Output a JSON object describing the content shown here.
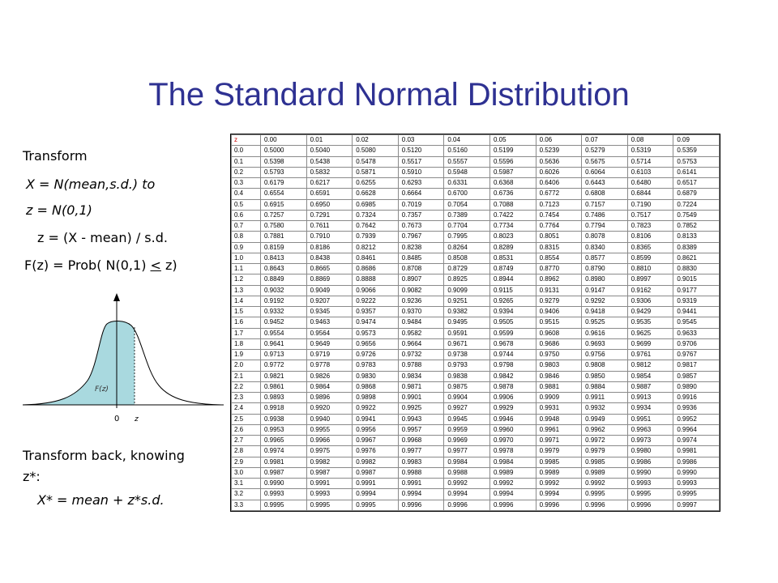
{
  "title": "The Standard Normal Distribution",
  "left": {
    "line1": "Transform",
    "line2": "X = N(mean,s.d.) to",
    "line3": "z = N(0,1)",
    "line4": "z = (X - mean) / s.d.",
    "line5_prefix": "F(z) = Prob( N(0,1) ",
    "line5_le": "<",
    "line5_suffix": " z)",
    "back1": "Transform back, knowing",
    "back2": "z*:",
    "back3": "X* = mean + z*s.d."
  },
  "curve": {
    "area_label": "F(z)",
    "origin_label": "0",
    "z_label": "z",
    "fill_color": "#a9d9df"
  },
  "table": {
    "corner": "z",
    "header": [
      "0.00",
      "0.01",
      "0.02",
      "0.03",
      "0.04",
      "0.05",
      "0.06",
      "0.07",
      "0.08",
      "0.09"
    ],
    "rows": [
      [
        "0.0",
        "0.5000",
        "0.5040",
        "0.5080",
        "0.5120",
        "0.5160",
        "0.5199",
        "0.5239",
        "0.5279",
        "0.5319",
        "0.5359"
      ],
      [
        "0.1",
        "0.5398",
        "0.5438",
        "0.5478",
        "0.5517",
        "0.5557",
        "0.5596",
        "0.5636",
        "0.5675",
        "0.5714",
        "0.5753"
      ],
      [
        "0.2",
        "0.5793",
        "0.5832",
        "0.5871",
        "0.5910",
        "0.5948",
        "0.5987",
        "0.6026",
        "0.6064",
        "0.6103",
        "0.6141"
      ],
      [
        "0.3",
        "0.6179",
        "0.6217",
        "0.6255",
        "0.6293",
        "0.6331",
        "0.6368",
        "0.6406",
        "0.6443",
        "0.6480",
        "0.6517"
      ],
      [
        "0.4",
        "0.6554",
        "0.6591",
        "0.6628",
        "0.6664",
        "0.6700",
        "0.6736",
        "0.6772",
        "0.6808",
        "0.6844",
        "0.6879"
      ],
      [
        "0.5",
        "0.6915",
        "0.6950",
        "0.6985",
        "0.7019",
        "0.7054",
        "0.7088",
        "0.7123",
        "0.7157",
        "0.7190",
        "0.7224"
      ],
      [
        "0.6",
        "0.7257",
        "0.7291",
        "0.7324",
        "0.7357",
        "0.7389",
        "0.7422",
        "0.7454",
        "0.7486",
        "0.7517",
        "0.7549"
      ],
      [
        "0.7",
        "0.7580",
        "0.7611",
        "0.7642",
        "0.7673",
        "0.7704",
        "0.7734",
        "0.7764",
        "0.7794",
        "0.7823",
        "0.7852"
      ],
      [
        "0.8",
        "0.7881",
        "0.7910",
        "0.7939",
        "0.7967",
        "0.7995",
        "0.8023",
        "0.8051",
        "0.8078",
        "0.8106",
        "0.8133"
      ],
      [
        "0.9",
        "0.8159",
        "0.8186",
        "0.8212",
        "0.8238",
        "0.8264",
        "0.8289",
        "0.8315",
        "0.8340",
        "0.8365",
        "0.8389"
      ],
      [
        "1.0",
        "0.8413",
        "0.8438",
        "0.8461",
        "0.8485",
        "0.8508",
        "0.8531",
        "0.8554",
        "0.8577",
        "0.8599",
        "0.8621"
      ],
      [
        "1.1",
        "0.8643",
        "0.8665",
        "0.8686",
        "0.8708",
        "0.8729",
        "0.8749",
        "0.8770",
        "0.8790",
        "0.8810",
        "0.8830"
      ],
      [
        "1.2",
        "0.8849",
        "0.8869",
        "0.8888",
        "0.8907",
        "0.8925",
        "0.8944",
        "0.8962",
        "0.8980",
        "0.8997",
        "0.9015"
      ],
      [
        "1.3",
        "0.9032",
        "0.9049",
        "0.9066",
        "0.9082",
        "0.9099",
        "0.9115",
        "0.9131",
        "0.9147",
        "0.9162",
        "0.9177"
      ],
      [
        "1.4",
        "0.9192",
        "0.9207",
        "0.9222",
        "0.9236",
        "0.9251",
        "0.9265",
        "0.9279",
        "0.9292",
        "0.9306",
        "0.9319"
      ],
      [
        "1.5",
        "0.9332",
        "0.9345",
        "0.9357",
        "0.9370",
        "0.9382",
        "0.9394",
        "0.9406",
        "0.9418",
        "0.9429",
        "0.9441"
      ],
      [
        "1.6",
        "0.9452",
        "0.9463",
        "0.9474",
        "0.9484",
        "0.9495",
        "0.9505",
        "0.9515",
        "0.9525",
        "0.9535",
        "0.9545"
      ],
      [
        "1.7",
        "0.9554",
        "0.9564",
        "0.9573",
        "0.9582",
        "0.9591",
        "0.9599",
        "0.9608",
        "0.9616",
        "0.9625",
        "0.9633"
      ],
      [
        "1.8",
        "0.9641",
        "0.9649",
        "0.9656",
        "0.9664",
        "0.9671",
        "0.9678",
        "0.9686",
        "0.9693",
        "0.9699",
        "0.9706"
      ],
      [
        "1.9",
        "0.9713",
        "0.9719",
        "0.9726",
        "0.9732",
        "0.9738",
        "0.9744",
        "0.9750",
        "0.9756",
        "0.9761",
        "0.9767"
      ],
      [
        "2.0",
        "0.9772",
        "0.9778",
        "0.9783",
        "0.9788",
        "0.9793",
        "0.9798",
        "0.9803",
        "0.9808",
        "0.9812",
        "0.9817"
      ],
      [
        "2.1",
        "0.9821",
        "0.9826",
        "0.9830",
        "0.9834",
        "0.9838",
        "0.9842",
        "0.9846",
        "0.9850",
        "0.9854",
        "0.9857"
      ],
      [
        "2.2",
        "0.9861",
        "0.9864",
        "0.9868",
        "0.9871",
        "0.9875",
        "0.9878",
        "0.9881",
        "0.9884",
        "0.9887",
        "0.9890"
      ],
      [
        "2.3",
        "0.9893",
        "0.9896",
        "0.9898",
        "0.9901",
        "0.9904",
        "0.9906",
        "0.9909",
        "0.9911",
        "0.9913",
        "0.9916"
      ],
      [
        "2.4",
        "0.9918",
        "0.9920",
        "0.9922",
        "0.9925",
        "0.9927",
        "0.9929",
        "0.9931",
        "0.9932",
        "0.9934",
        "0.9936"
      ],
      [
        "2.5",
        "0.9938",
        "0.9940",
        "0.9941",
        "0.9943",
        "0.9945",
        "0.9946",
        "0.9948",
        "0.9949",
        "0.9951",
        "0.9952"
      ],
      [
        "2.6",
        "0.9953",
        "0.9955",
        "0.9956",
        "0.9957",
        "0.9959",
        "0.9960",
        "0.9961",
        "0.9962",
        "0.9963",
        "0.9964"
      ],
      [
        "2.7",
        "0.9965",
        "0.9966",
        "0.9967",
        "0.9968",
        "0.9969",
        "0.9970",
        "0.9971",
        "0.9972",
        "0.9973",
        "0.9974"
      ],
      [
        "2.8",
        "0.9974",
        "0.9975",
        "0.9976",
        "0.9977",
        "0.9977",
        "0.9978",
        "0.9979",
        "0.9979",
        "0.9980",
        "0.9981"
      ],
      [
        "2.9",
        "0.9981",
        "0.9982",
        "0.9982",
        "0.9983",
        "0.9984",
        "0.9984",
        "0.9985",
        "0.9985",
        "0.9986",
        "0.9986"
      ],
      [
        "3.0",
        "0.9987",
        "0.9987",
        "0.9987",
        "0.9988",
        "0.9988",
        "0.9989",
        "0.9989",
        "0.9989",
        "0.9990",
        "0.9990"
      ],
      [
        "3.1",
        "0.9990",
        "0.9991",
        "0.9991",
        "0.9991",
        "0.9992",
        "0.9992",
        "0.9992",
        "0.9992",
        "0.9993",
        "0.9993"
      ],
      [
        "3.2",
        "0.9993",
        "0.9993",
        "0.9994",
        "0.9994",
        "0.9994",
        "0.9994",
        "0.9994",
        "0.9995",
        "0.9995",
        "0.9995"
      ],
      [
        "3.3",
        "0.9995",
        "0.9995",
        "0.9995",
        "0.9996",
        "0.9996",
        "0.9996",
        "0.9996",
        "0.9996",
        "0.9996",
        "0.9997"
      ]
    ]
  }
}
